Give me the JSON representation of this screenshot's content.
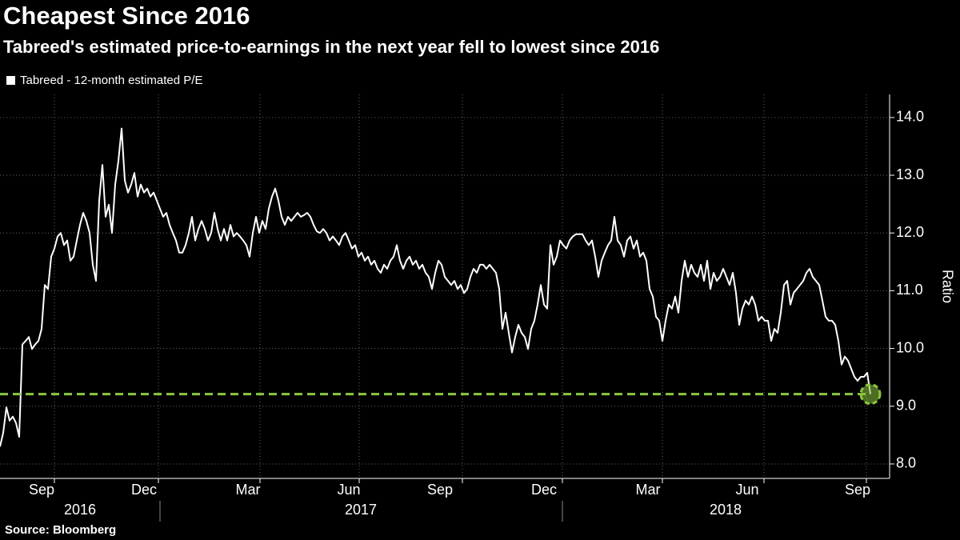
{
  "chart_data": {
    "type": "line",
    "title": "Cheapest Since 2016",
    "subtitle": "Tabreed's estimated price-to-earnings in the next year fell to lowest since 2016",
    "y_axis_label": "Ratio",
    "source": "Source: Bloomberg",
    "series": [
      {
        "name": "Tabreed - 12-month estimated P/E",
        "color": "#ffffff",
        "values": [
          8.3,
          8.54,
          8.98,
          8.75,
          8.82,
          8.71,
          8.47,
          10.07,
          10.13,
          10.2,
          9.99,
          10.07,
          10.13,
          10.34,
          11.1,
          11.03,
          11.59,
          11.73,
          11.94,
          12.0,
          11.79,
          11.87,
          11.52,
          11.59,
          11.87,
          12.14,
          12.35,
          12.21,
          12.0,
          11.45,
          11.17,
          12.56,
          13.18,
          12.28,
          12.49,
          12.0,
          12.84,
          13.25,
          13.81,
          12.91,
          12.7,
          12.84,
          13.04,
          12.63,
          12.84,
          12.7,
          12.77,
          12.63,
          12.7,
          12.56,
          12.42,
          12.28,
          12.35,
          12.14,
          12.0,
          11.87,
          11.66,
          11.66,
          11.79,
          12.0,
          12.28,
          11.87,
          12.07,
          12.21,
          12.07,
          11.87,
          12.0,
          12.35,
          12.07,
          11.87,
          12.07,
          11.87,
          12.14,
          11.94,
          12.0,
          11.94,
          11.87,
          11.79,
          11.59,
          12.0,
          12.28,
          12.0,
          12.21,
          12.07,
          12.42,
          12.63,
          12.77,
          12.56,
          12.28,
          12.14,
          12.28,
          12.21,
          12.28,
          12.35,
          12.28,
          12.31,
          12.35,
          12.28,
          12.14,
          12.03,
          12.0,
          12.07,
          12.0,
          11.87,
          11.94,
          11.87,
          11.79,
          11.94,
          12.0,
          11.87,
          11.73,
          11.79,
          11.59,
          11.66,
          11.52,
          11.59,
          11.45,
          11.52,
          11.38,
          11.31,
          11.45,
          11.38,
          11.52,
          11.59,
          11.79,
          11.52,
          11.38,
          11.52,
          11.59,
          11.45,
          11.52,
          11.38,
          11.45,
          11.31,
          11.24,
          11.03,
          11.31,
          11.52,
          11.45,
          11.24,
          11.17,
          11.1,
          11.17,
          11.03,
          11.1,
          10.96,
          11.03,
          11.24,
          11.38,
          11.31,
          11.45,
          11.45,
          11.38,
          11.45,
          11.38,
          11.31,
          11.03,
          10.34,
          10.62,
          10.27,
          9.93,
          10.2,
          10.41,
          10.27,
          10.2,
          9.99,
          10.34,
          10.48,
          10.76,
          11.1,
          10.76,
          10.69,
          11.79,
          11.45,
          11.59,
          11.87,
          11.79,
          11.73,
          11.87,
          11.94,
          11.98,
          11.98,
          11.98,
          11.87,
          11.79,
          11.87,
          11.59,
          11.24,
          11.52,
          11.66,
          11.79,
          11.87,
          12.28,
          11.87,
          11.79,
          11.59,
          11.87,
          11.94,
          11.73,
          11.87,
          11.59,
          11.66,
          11.52,
          11.03,
          10.9,
          10.55,
          10.48,
          10.13,
          10.48,
          10.76,
          10.69,
          10.9,
          10.62,
          11.17,
          11.52,
          11.24,
          11.45,
          11.31,
          11.24,
          11.45,
          11.17,
          11.52,
          11.03,
          11.31,
          11.17,
          11.24,
          11.38,
          11.24,
          11.1,
          11.31,
          10.96,
          10.41,
          10.69,
          10.83,
          10.76,
          10.9,
          10.76,
          10.48,
          10.55,
          10.48,
          10.48,
          10.13,
          10.34,
          10.27,
          10.62,
          11.1,
          11.17,
          10.76,
          10.96,
          11.03,
          11.1,
          11.17,
          11.31,
          11.38,
          11.24,
          11.17,
          11.1,
          10.83,
          10.55,
          10.48,
          10.48,
          10.41,
          10.13,
          9.72,
          9.86,
          9.79,
          9.65,
          9.51,
          9.44,
          9.51,
          9.51,
          9.58,
          9.21
        ]
      }
    ],
    "reference_line": {
      "value": 9.21,
      "color": "#8dc63f"
    },
    "month_labels": [
      "Sep",
      "Dec",
      "Mar",
      "Jun",
      "Sep",
      "Dec",
      "Mar",
      "Jun",
      "Sep"
    ],
    "year_labels": [
      "2016",
      "2017",
      "2018"
    ],
    "ylim": [
      7.75,
      14.4
    ],
    "yticks": [
      {
        "value": 8,
        "label": "8.0"
      },
      {
        "value": 9,
        "label": "9.0"
      },
      {
        "value": 10,
        "label": "10.0"
      },
      {
        "value": 11,
        "label": "11.0"
      },
      {
        "value": 12,
        "label": "12.0"
      },
      {
        "value": 13,
        "label": "13.0"
      },
      {
        "value": 14,
        "label": "14.0"
      }
    ],
    "grid": true
  }
}
